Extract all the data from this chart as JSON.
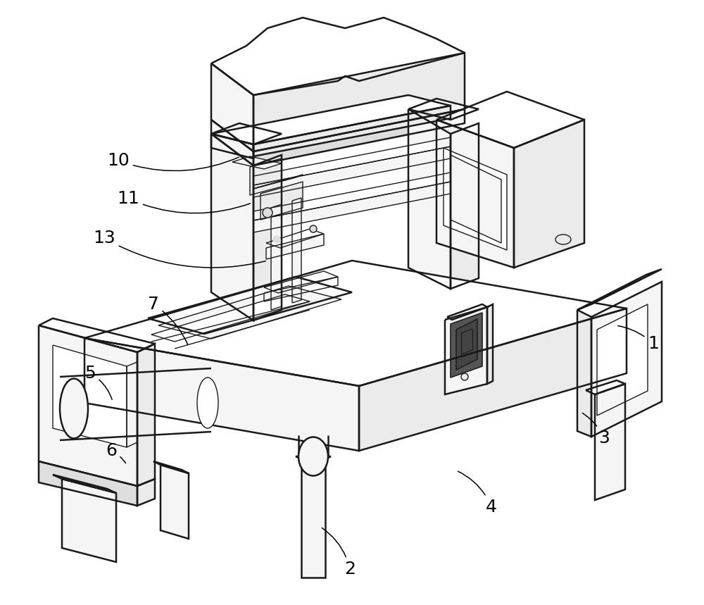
{
  "bg_color": "#ffffff",
  "line_color": "#1a1a1a",
  "lw_main": 1.8,
  "lw_thin": 1.0,
  "fill_white": "#ffffff",
  "fill_light": "#f5f5f5",
  "fill_mid": "#ebebeb",
  "fill_dark": "#dedede",
  "annotations": [
    [
      1,
      928,
      488,
      875,
      462,
      0.15
    ],
    [
      2,
      497,
      808,
      455,
      748,
      0.2
    ],
    [
      3,
      858,
      622,
      825,
      585,
      0.15
    ],
    [
      4,
      698,
      720,
      648,
      668,
      0.2
    ],
    [
      5,
      128,
      530,
      160,
      570,
      -0.2
    ],
    [
      6,
      158,
      640,
      180,
      660,
      -0.15
    ],
    [
      7,
      218,
      432,
      268,
      492,
      -0.15
    ],
    [
      10,
      168,
      228,
      342,
      222,
      0.2
    ],
    [
      11,
      182,
      282,
      358,
      288,
      0.2
    ],
    [
      13,
      148,
      338,
      380,
      370,
      0.2
    ]
  ]
}
